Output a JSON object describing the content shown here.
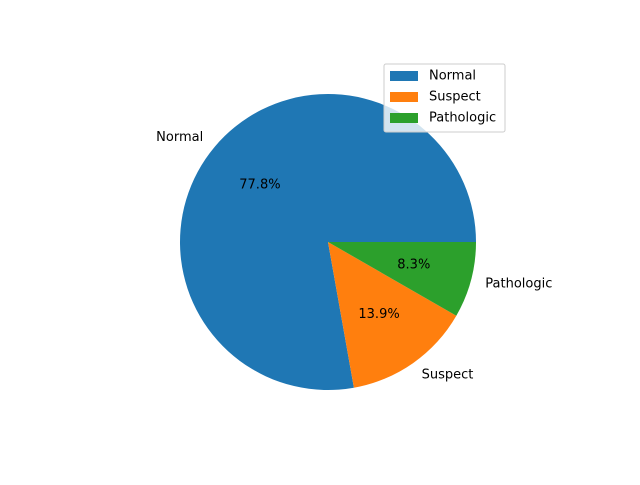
{
  "chart_data": {
    "type": "pie",
    "title": "",
    "categories": [
      "Normal",
      "Suspect",
      "Pathologic"
    ],
    "values": [
      77.8,
      13.9,
      8.3
    ],
    "percent_labels": [
      "77.8%",
      "13.9%",
      "8.3%"
    ],
    "colors": [
      "#1f77b4",
      "#ff7f0e",
      "#2ca02c"
    ],
    "start_angle_deg": 0,
    "direction": "counterclockwise",
    "legend": {
      "placement": "upper-right",
      "entries": [
        "Normal",
        "Suspect",
        "Pathologic"
      ]
    }
  }
}
